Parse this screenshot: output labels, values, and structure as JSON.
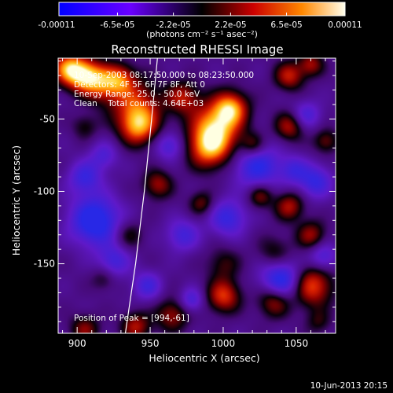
{
  "colorbar": {
    "tick_labels": [
      "-0.00011",
      "-6.5e-05",
      "-2.2e-05",
      "2.2e-05",
      "6.5e-05",
      "0.00011"
    ],
    "tick_values": [
      -0.00011,
      -6.5e-05,
      -2.2e-05,
      2.2e-05,
      6.5e-05,
      0.00011
    ],
    "range": [
      -0.00011,
      0.00011
    ],
    "units_label": "(photons cm⁻² s⁻¹ asec⁻²)"
  },
  "chart_data": {
    "type": "heatmap",
    "title": "Reconstructed RHESSI Image",
    "xlabel": "Heliocentric X (arcsec)",
    "ylabel": "Heliocentric Y (arcsec)",
    "xlim": [
      887,
      1077
    ],
    "ylim": [
      -198,
      -8
    ],
    "x_ticks": [
      900,
      950,
      1000,
      1050
    ],
    "y_ticks": [
      -50,
      -100,
      -150
    ],
    "info_lines": [
      "10-Sep-2003 08:17:50.000 to 08:23:50.000",
      "Detectors: 4F 5F 6F 7F 8F, Att 0",
      "Energy Range: 25.0 - 50.0 keV",
      "Clean    Total counts: 4.64E+03"
    ],
    "peak_annotation": "Position of Peak = [994,-61]",
    "peak": [
      994,
      -61
    ],
    "limb_curve": [
      [
        955,
        -8
      ],
      [
        951,
        -50
      ],
      [
        946,
        -100
      ],
      [
        940,
        -150
      ],
      [
        933,
        -198
      ]
    ],
    "blobs": [
      [
        894,
        -15,
        0.95,
        8
      ],
      [
        905,
        -20,
        0.9,
        8
      ],
      [
        918,
        -25,
        0.8,
        9
      ],
      [
        930,
        -22,
        0.55,
        7
      ],
      [
        940,
        -40,
        0.7,
        12
      ],
      [
        942,
        -55,
        0.85,
        9
      ],
      [
        995,
        -55,
        1.0,
        12
      ],
      [
        990,
        -70,
        0.85,
        10
      ],
      [
        1005,
        -42,
        0.85,
        8
      ],
      [
        972,
        -35,
        0.6,
        8
      ],
      [
        1020,
        -68,
        0.5,
        6
      ],
      [
        1045,
        -20,
        0.65,
        7
      ],
      [
        1060,
        -12,
        0.55,
        6
      ],
      [
        1045,
        -55,
        0.6,
        7
      ],
      [
        1070,
        -65,
        0.45,
        6
      ],
      [
        955,
        -95,
        0.55,
        7
      ],
      [
        985,
        -108,
        0.45,
        6
      ],
      [
        1025,
        -103,
        0.5,
        6
      ],
      [
        1045,
        -110,
        0.6,
        7
      ],
      [
        1060,
        -130,
        0.55,
        7
      ],
      [
        1035,
        -142,
        0.35,
        8
      ],
      [
        1000,
        -150,
        0.35,
        8
      ],
      [
        1060,
        -165,
        0.85,
        10
      ],
      [
        1035,
        -175,
        0.7,
        8
      ],
      [
        1000,
        -172,
        0.75,
        8
      ],
      [
        935,
        -130,
        0.35,
        7
      ],
      [
        965,
        -185,
        0.55,
        8
      ],
      [
        940,
        -193,
        0.6,
        7
      ],
      [
        905,
        -195,
        0.5,
        7
      ],
      [
        918,
        -160,
        0.3,
        6
      ],
      [
        905,
        -55,
        0.3,
        6
      ],
      [
        1065,
        -190,
        0.3,
        6
      ],
      [
        912,
        -120,
        -0.9,
        12
      ],
      [
        905,
        -90,
        -0.55,
        8
      ],
      [
        925,
        -148,
        -0.5,
        8
      ],
      [
        1023,
        -82,
        -0.7,
        11
      ],
      [
        1048,
        -85,
        -0.45,
        7
      ],
      [
        1003,
        -118,
        -0.6,
        9
      ],
      [
        1040,
        -162,
        -0.9,
        10
      ],
      [
        1063,
        -93,
        -0.6,
        8
      ],
      [
        1057,
        -47,
        -0.45,
        7
      ],
      [
        963,
        -68,
        -0.5,
        7
      ],
      [
        972,
        -130,
        -0.5,
        8
      ],
      [
        1068,
        -145,
        -0.5,
        7
      ],
      [
        978,
        -175,
        -0.5,
        6
      ],
      [
        918,
        -75,
        -0.4,
        7
      ],
      [
        948,
        -165,
        -0.5,
        7
      ]
    ]
  },
  "footer": {
    "date_stamp": "10-Jun-2013 20:15"
  }
}
